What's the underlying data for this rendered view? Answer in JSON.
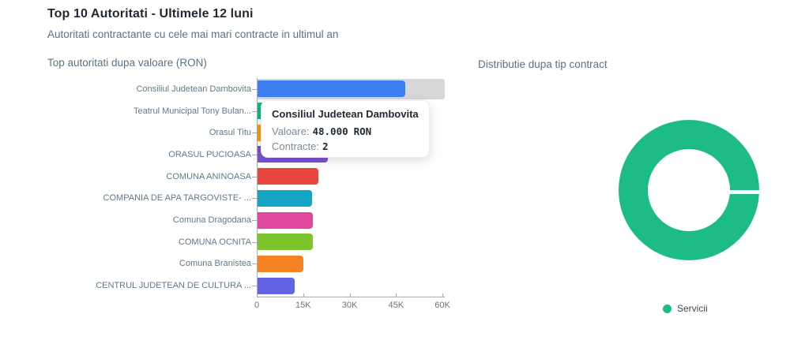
{
  "page": {
    "title": "Top 10 Autoritati - Ultimele 12 luni",
    "subtitle": "Autoritati contractante cu cele mai mari contracte in ultimul an"
  },
  "tooltip": {
    "title": "Consiliul Judetean Dambovita",
    "value_label": "Valoare:",
    "value": "48.000",
    "value_unit": "RON",
    "contracts_label": "Contracte:",
    "contracts": "2"
  },
  "chart_data": [
    {
      "type": "bar",
      "orientation": "horizontal",
      "title": "Top autoritati dupa valoare (RON)",
      "categories": [
        "Consiliul Judetean Dambovita",
        "Teatrul Municipal Tony Bulan...",
        "Orasul Titu",
        "ORASUL PUCIOASA",
        "COMUNA ANINOASA",
        "COMPANIA DE APA TARGOVISTE- ...",
        "Comuna Dragodana",
        "COMUNA OCNITA",
        "Comuna Branistea",
        "CENTRUL JUDETEAN DE CULTURA ..."
      ],
      "values": [
        48000,
        35000,
        27000,
        23000,
        20000,
        17800,
        18000,
        18100,
        15000,
        12300
      ],
      "bar_colors": [
        "#3d7ef0",
        "#10b981",
        "#f59e0b",
        "#7b52d1",
        "#e8463f",
        "#14a5c4",
        "#e2479e",
        "#7dc42f",
        "#f58220",
        "#6164e3"
      ],
      "xlim": [
        0,
        60000
      ],
      "x_ticks": [
        "0",
        "15K",
        "30K",
        "45K",
        "60K"
      ],
      "grid": false,
      "highlighted_index": 0,
      "highlight_color": "#d6d7d9",
      "label_color": "#5e7a8a"
    },
    {
      "type": "pie",
      "donut": true,
      "title": "Distributie dupa tip contract",
      "slices": [
        {
          "label": "Servicii",
          "value": 100,
          "color": "#1dbc85"
        }
      ],
      "legend_position": "bottom"
    }
  ]
}
